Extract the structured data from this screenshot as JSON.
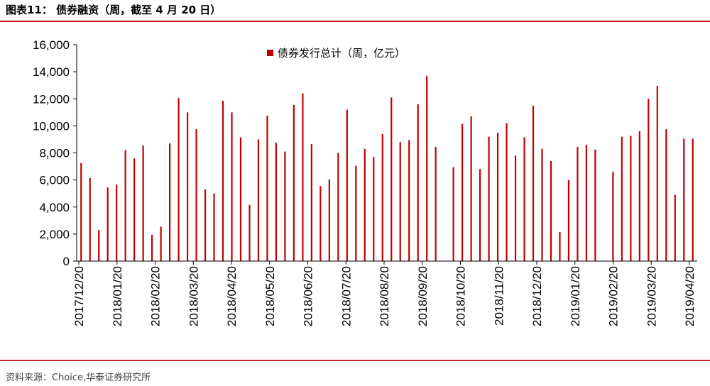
{
  "header": {
    "title": "图表11： 债券融资（周，截至 4 月 20 日）"
  },
  "source": {
    "text": "资料来源：Choice,华泰证券研究所"
  },
  "colors": {
    "accent": "#c0282d",
    "bar": "#c00000",
    "axis": "#000000"
  },
  "chart_data": {
    "type": "bar",
    "title": "",
    "xlabel": "",
    "ylabel": "",
    "ylim": [
      0,
      16000
    ],
    "yticks": [
      "0",
      "2,000",
      "4,000",
      "6,000",
      "8,000",
      "10,000",
      "12,000",
      "14,000",
      "16,000"
    ],
    "xticks": [
      "2017/12/20",
      "2018/01/20",
      "2018/02/20",
      "2018/03/20",
      "2018/04/20",
      "2018/05/20",
      "2018/06/20",
      "2018/07/20",
      "2018/08/20",
      "2018/09/20",
      "2018/10/20",
      "2018/11/20",
      "2018/12/20",
      "2019/01/20",
      "2019/02/20",
      "2019/03/20",
      "2019/04/20"
    ],
    "legend": {
      "position": "top-center"
    },
    "grid": false,
    "series": [
      {
        "name": "债券发行总计（周，亿元）",
        "values": [
          7250,
          6150,
          2300,
          5450,
          5650,
          8200,
          7600,
          8550,
          1950,
          2550,
          8700,
          12050,
          11000,
          9750,
          5300,
          5000,
          11850,
          11000,
          9150,
          4150,
          9000,
          10750,
          8750,
          8100,
          11550,
          12400,
          8650,
          5550,
          6050,
          8000,
          11200,
          7050,
          8300,
          7700,
          9400,
          12100,
          8800,
          8950,
          11600,
          13700,
          8450,
          0,
          6950,
          10150,
          10700,
          6800,
          9200,
          9500,
          10200,
          7800,
          9150,
          11500,
          8300,
          7400,
          2150,
          6000,
          8450,
          8600,
          8250,
          0,
          6600,
          9200,
          9250,
          9600,
          12000,
          12950,
          9750,
          4900,
          9050,
          9050
        ]
      }
    ]
  }
}
